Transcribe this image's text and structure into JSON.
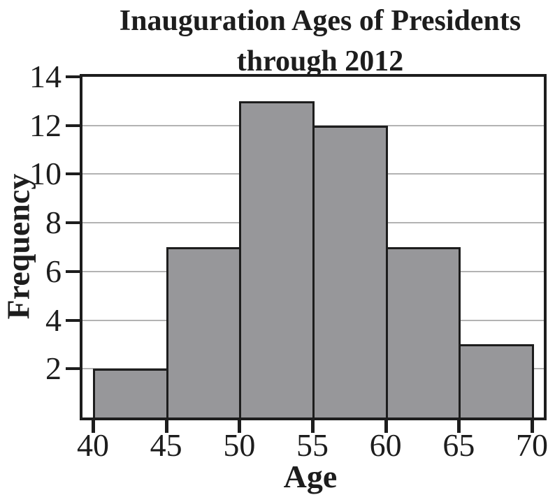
{
  "figure": {
    "title_line1": "Inauguration Ages of Presidents",
    "title_line2": "through 2012",
    "xlabel": "Age",
    "ylabel": "Frequency"
  },
  "chart_data": {
    "type": "bar",
    "subtype": "histogram",
    "title": "Inauguration Ages of Presidents through 2012",
    "xlabel": "Age",
    "ylabel": "Frequency",
    "bin_edges": [
      40,
      45,
      50,
      55,
      60,
      65,
      70
    ],
    "bin_labels": [
      "40-45",
      "45-50",
      "50-55",
      "55-60",
      "60-65",
      "65-70"
    ],
    "values": [
      2,
      7,
      13,
      12,
      7,
      3
    ],
    "xticks": [
      40,
      45,
      50,
      55,
      60,
      65,
      70
    ],
    "yticks": [
      2,
      4,
      6,
      8,
      10,
      12,
      14
    ],
    "xlim": [
      39.3,
      70.8
    ],
    "ylim": [
      0,
      14
    ],
    "grid": "horizontal",
    "legend_position": "none",
    "colors": {
      "bar_fill": "#97979a",
      "bar_border": "#1d1d1d",
      "axis": "#1d1d1d",
      "gridline": "#b3b3b3",
      "text": "#1d1d1d",
      "background": "#ffffff"
    }
  }
}
